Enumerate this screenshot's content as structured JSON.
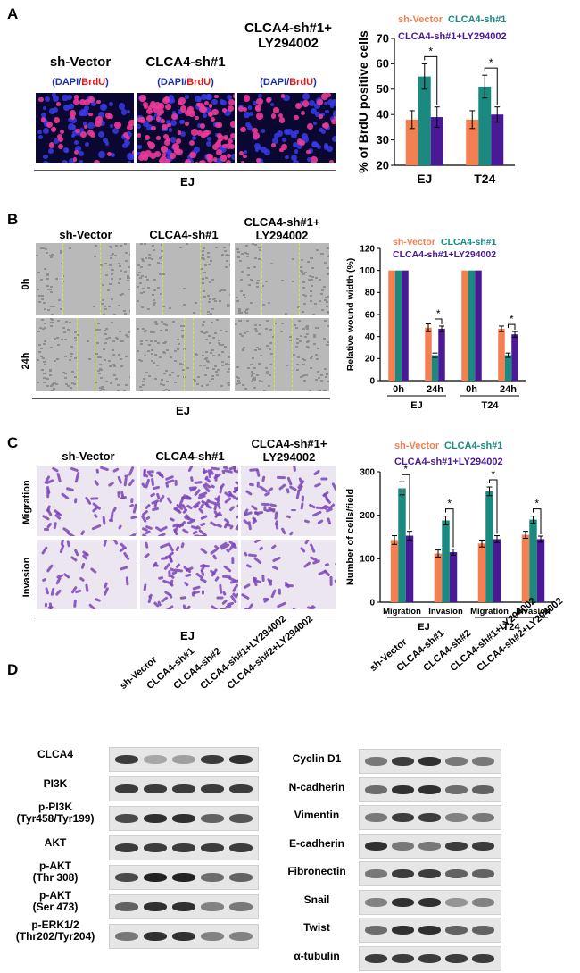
{
  "colors": {
    "sh_vector": "#f47f50",
    "clca4_sh1": "#1a8a80",
    "clca4_ly": "#4a1a96",
    "dapi": "#1a2fa8",
    "brdu": "#e01818",
    "wound_line": "#d8e82a",
    "crystal": "#7a44b8"
  },
  "panelA": {
    "label": "A",
    "conditions": [
      {
        "title": "sh-Vector"
      },
      {
        "title": "CLCA4-sh#1"
      },
      {
        "title": "CLCA4-sh#1+\nLY294002"
      }
    ],
    "stain_open": "(",
    "stain_dapi": "DAPI",
    "stain_slash": "/",
    "stain_brdu": "BrdU",
    "stain_close": ")",
    "cell_line": "EJ"
  },
  "panelB": {
    "label": "B",
    "conditions": [
      {
        "title": "sh-Vector"
      },
      {
        "title": "CLCA4-sh#1"
      },
      {
        "title": "CLCA4-sh#1+\nLY294002"
      }
    ],
    "rows": [
      "0h",
      "24h"
    ],
    "cell_line": "EJ"
  },
  "panelC": {
    "label": "C",
    "conditions": [
      {
        "title": "sh-Vector"
      },
      {
        "title": "CLCA4-sh#1"
      },
      {
        "title": "CLCA4-sh#1+\nLY294002"
      }
    ],
    "rows": [
      "Migration",
      "Invasion"
    ],
    "cell_line": "EJ"
  },
  "panelD": {
    "label": "D",
    "lanes": [
      "sh-Vector",
      "CLCA4-sh#1",
      "CLCA4-sh#2",
      "CLCA4-sh#1+LY294002",
      "CLCA4-sh#2+LY294002"
    ],
    "left_blots": [
      {
        "label": "CLCA4",
        "intensity": [
          0.85,
          0.35,
          0.4,
          0.85,
          0.9
        ]
      },
      {
        "label": "PI3K",
        "intensity": [
          0.85,
          0.85,
          0.85,
          0.85,
          0.85
        ]
      },
      {
        "label": "p-PI3K\n(Tyr458/Tyr199)",
        "intensity": [
          0.8,
          0.9,
          0.9,
          0.7,
          0.75
        ]
      },
      {
        "label": "AKT",
        "intensity": [
          0.85,
          0.85,
          0.85,
          0.85,
          0.85
        ]
      },
      {
        "label": "p-AKT\n(Thr 308)",
        "intensity": [
          0.8,
          0.95,
          0.95,
          0.65,
          0.7
        ]
      },
      {
        "label": "p-AKT\n(Ser 473)",
        "intensity": [
          0.7,
          0.9,
          0.9,
          0.55,
          0.6
        ]
      },
      {
        "label": "p-ERK1/2\n(Thr202/Tyr204)",
        "intensity": [
          0.6,
          0.9,
          0.9,
          0.55,
          0.55
        ]
      }
    ],
    "right_blots": [
      {
        "label": "Cyclin D1",
        "intensity": [
          0.6,
          0.85,
          0.9,
          0.6,
          0.6
        ]
      },
      {
        "label": "N-cadherin",
        "intensity": [
          0.65,
          0.9,
          0.9,
          0.65,
          0.7
        ]
      },
      {
        "label": "Vimentin",
        "intensity": [
          0.6,
          0.85,
          0.85,
          0.55,
          0.6
        ]
      },
      {
        "label": "E-cadherin",
        "intensity": [
          0.9,
          0.6,
          0.6,
          0.85,
          0.85
        ]
      },
      {
        "label": "Fibronectin",
        "intensity": [
          0.6,
          0.85,
          0.85,
          0.7,
          0.7
        ]
      },
      {
        "label": "Snail",
        "intensity": [
          0.55,
          0.9,
          0.9,
          0.45,
          0.55
        ]
      },
      {
        "label": "Twist",
        "intensity": [
          0.65,
          0.9,
          0.9,
          0.7,
          0.7
        ]
      },
      {
        "label": "α-tubulin",
        "intensity": [
          0.85,
          0.85,
          0.85,
          0.85,
          0.85
        ]
      }
    ]
  },
  "chart_data": [
    {
      "type": "bar",
      "categories": [
        "EJ",
        "T24"
      ],
      "series": [
        {
          "name": "sh-Vector",
          "values": [
            38,
            38
          ],
          "errors": [
            3.5,
            3.5
          ]
        },
        {
          "name": "CLCA4-sh#1",
          "values": [
            55,
            51
          ],
          "errors": [
            5,
            4.5
          ]
        },
        {
          "name": "CLCA4-sh#1+LY294002",
          "values": [
            39,
            40
          ],
          "errors": [
            4,
            3
          ]
        }
      ],
      "ylabel": "% of BrdU positive cells",
      "ylim": [
        20,
        70
      ],
      "yticks": [
        20,
        30,
        40,
        50,
        60,
        70
      ],
      "significance": "*"
    },
    {
      "type": "bar",
      "groups": [
        "EJ",
        "T24"
      ],
      "subcategories": [
        "0h",
        "24h"
      ],
      "series": [
        {
          "name": "sh-Vector",
          "values": [
            100,
            48,
            100,
            47
          ],
          "errors": [
            0,
            3.5,
            0,
            2.5
          ]
        },
        {
          "name": "CLCA4-sh#1",
          "values": [
            100,
            23,
            100,
            23
          ],
          "errors": [
            0,
            2,
            0,
            2
          ]
        },
        {
          "name": "CLCA4-sh#1+LY294002",
          "values": [
            100,
            47,
            100,
            42
          ],
          "errors": [
            0,
            2.5,
            0,
            2.5
          ]
        }
      ],
      "ylabel": "Relative wound width (%)",
      "ylim": [
        0,
        120
      ],
      "yticks": [
        0,
        20,
        40,
        60,
        80,
        100,
        120
      ],
      "significance": "*"
    },
    {
      "type": "bar",
      "groups": [
        "EJ",
        "T24"
      ],
      "subcategories": [
        "Migration",
        "Invasion"
      ],
      "series": [
        {
          "name": "sh-Vector",
          "values": [
            143,
            112,
            135,
            155
          ],
          "errors": [
            10,
            8,
            8,
            8
          ]
        },
        {
          "name": "CLCA4-sh#1",
          "values": [
            262,
            188,
            255,
            190
          ],
          "errors": [
            15,
            10,
            10,
            8
          ]
        },
        {
          "name": "CLCA4-sh#1+LY294002",
          "values": [
            153,
            115,
            145,
            145
          ],
          "errors": [
            10,
            7,
            8,
            7
          ]
        }
      ],
      "ylabel": "Number of cells/field",
      "ylim": [
        0,
        300
      ],
      "yticks": [
        0,
        100,
        200,
        300
      ],
      "significance": "*"
    }
  ]
}
